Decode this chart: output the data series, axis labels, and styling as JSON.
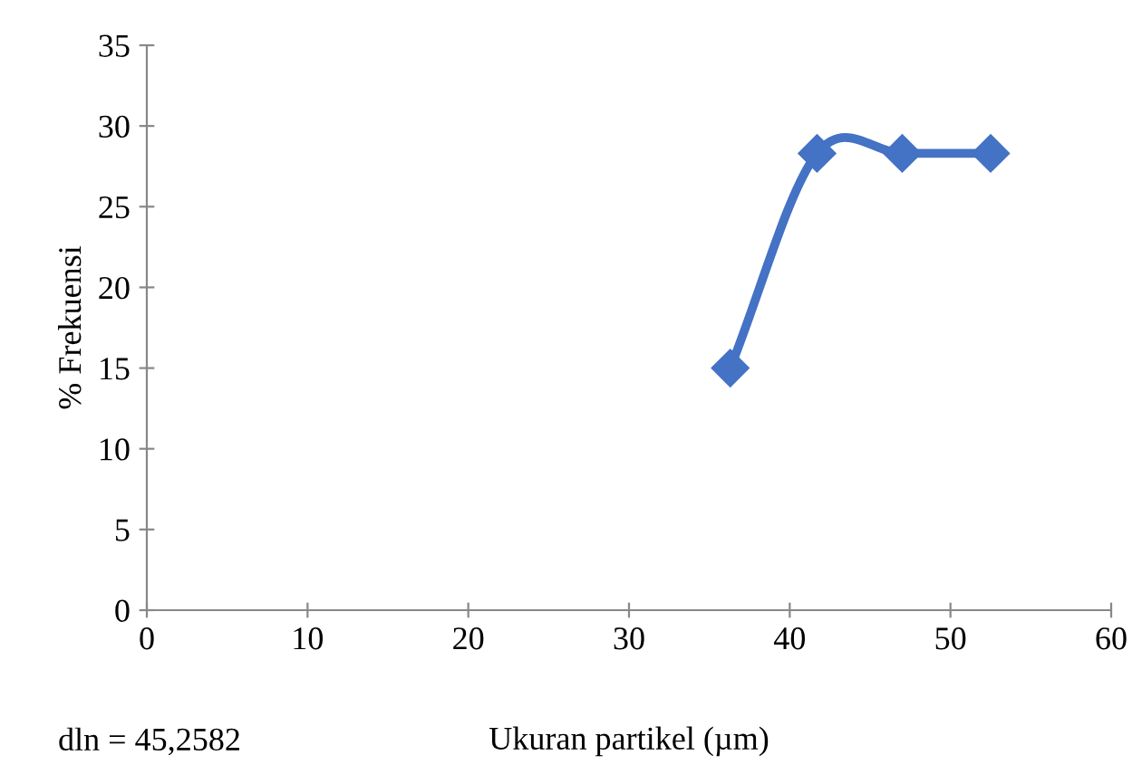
{
  "chart_data": {
    "type": "line",
    "xlabel": "Ukuran partikel (µm)",
    "ylabel": "% Frekuensi",
    "x": [
      36.3,
      41.7,
      47.0,
      52.5
    ],
    "series": [
      {
        "color": "#4472c4",
        "values": [
          15,
          28.3,
          28.3,
          28.3
        ]
      }
    ],
    "xlim": [
      0,
      60
    ],
    "xticks": [
      0,
      10,
      20,
      30,
      40,
      50,
      60
    ],
    "ylim": [
      0,
      35
    ],
    "yticks": [
      0,
      5,
      10,
      15,
      20,
      25,
      30,
      35
    ],
    "marker": "diamond",
    "line_style": "solid",
    "grid": false,
    "legend": false,
    "annotations": [
      "dln = 45,2582"
    ]
  }
}
